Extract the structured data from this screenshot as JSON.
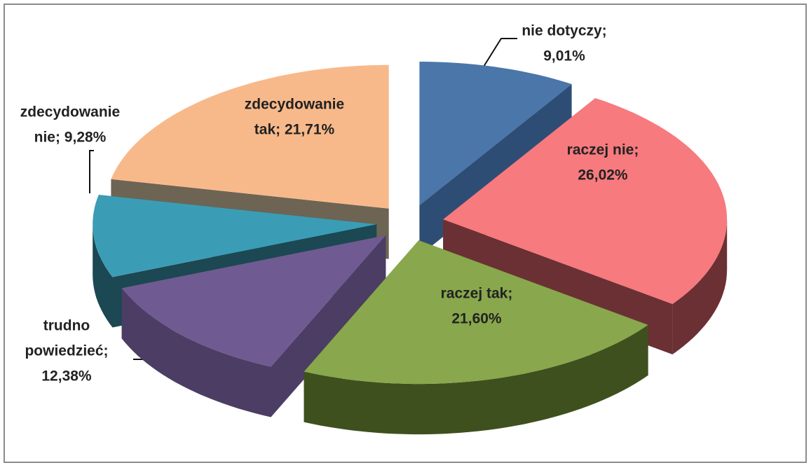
{
  "chart_data": {
    "type": "pie3d",
    "categories": [
      "nie dotyczy",
      "raczej nie",
      "raczej tak",
      "trudno powiedzieć",
      "zdecydowanie nie",
      "zdecydowanie tak"
    ],
    "values": [
      9.01,
      26.02,
      21.6,
      12.38,
      9.28,
      21.71
    ],
    "value_labels": [
      [
        "nie dotyczy;",
        "9,01%"
      ],
      [
        "raczej nie;",
        "26,02%"
      ],
      [
        "raczej tak;",
        "21,60%"
      ],
      [
        "trudno",
        "powiedzieć;",
        "12,38%"
      ],
      [
        "zdecydowanie",
        "nie; 9,28%"
      ],
      [
        "zdecydowanie",
        "tak; 21,71%"
      ]
    ],
    "colors": [
      "#4a76aa",
      "#f77a7e",
      "#89a74c",
      "#705a92",
      "#3b9db5",
      "#f8b98a"
    ],
    "side_colors": [
      "#2e4d75",
      "#6b3034",
      "#3f501f",
      "#4b3d64",
      "#1b4852",
      "#6e6454"
    ]
  }
}
